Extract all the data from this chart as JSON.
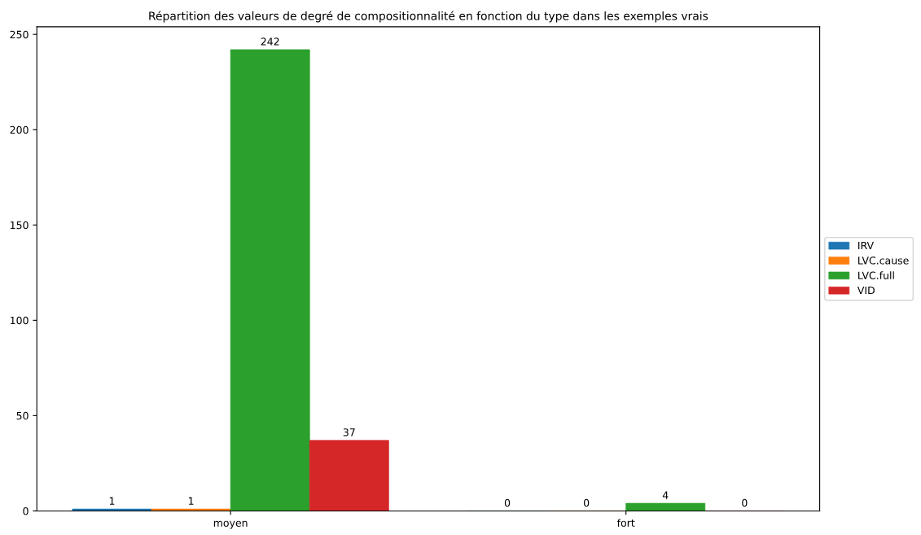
{
  "chart_data": {
    "type": "bar",
    "title": "Répartition des valeurs de degré de compositionnalité en fonction du type dans les exemples vrais",
    "categories": [
      "moyen",
      "fort"
    ],
    "series": [
      {
        "name": "IRV",
        "color": "#1f77b4",
        "values": [
          1,
          0
        ]
      },
      {
        "name": "LVC.cause",
        "color": "#ff7f0e",
        "values": [
          1,
          0
        ]
      },
      {
        "name": "LVC.full",
        "color": "#2ca02c",
        "values": [
          242,
          4
        ]
      },
      {
        "name": "VID",
        "color": "#d62728",
        "values": [
          37,
          0
        ]
      }
    ],
    "ylim": [
      0,
      254
    ],
    "yticks": [
      0,
      50,
      100,
      150,
      200,
      250
    ],
    "data_labels": true,
    "legend": "right",
    "grid": false
  }
}
